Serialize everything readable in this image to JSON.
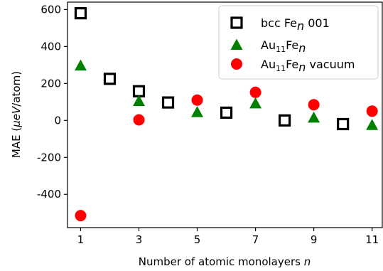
{
  "chart_data": {
    "type": "scatter",
    "xlabel": "Number of atomic monolayers n",
    "ylabel": "MAE (μeV/atom)",
    "xlim": [
      0.55,
      11.35
    ],
    "ylim": [
      -580,
      640
    ],
    "x_ticks": [
      1,
      3,
      5,
      7,
      9,
      11
    ],
    "y_ticks": [
      -400,
      -200,
      0,
      200,
      400,
      600
    ],
    "legend_position": "top-right",
    "series": [
      {
        "name": "bcc Fen 001",
        "marker": "open-square",
        "color": "#000000",
        "x": [
          1,
          2,
          3,
          4,
          6,
          8,
          10
        ],
        "y": [
          580,
          225,
          158,
          97,
          42,
          0,
          -20
        ]
      },
      {
        "name": "Au11Fen",
        "marker": "triangle",
        "color": "#008000",
        "x": [
          1,
          3,
          5,
          7,
          9,
          11
        ],
        "y": [
          297,
          105,
          45,
          92,
          15,
          -25
        ]
      },
      {
        "name": "Au11Fen vacuum",
        "marker": "circle",
        "color": "#ff0000",
        "x": [
          1,
          3,
          5,
          7,
          9,
          11
        ],
        "y": [
          -515,
          3,
          110,
          152,
          85,
          50
        ]
      }
    ]
  }
}
